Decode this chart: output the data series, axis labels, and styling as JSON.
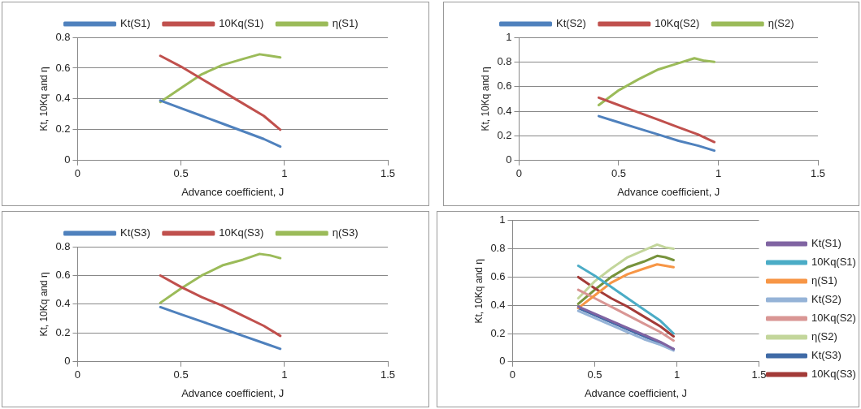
{
  "chart_data": [
    {
      "type": "line",
      "xlabel": "Advance coefficient, J",
      "ylabel": "Kt, 10Kq and η",
      "xlim": [
        0,
        1.5
      ],
      "xticks": [
        0,
        0.5,
        1,
        1.5
      ],
      "ylim": [
        0,
        0.8
      ],
      "yticks": [
        0,
        0.2,
        0.4,
        0.6,
        0.8
      ],
      "grid": "y",
      "legend": "top",
      "marker": "none",
      "series": [
        {
          "name": "Kt(S1)",
          "color": "#4f81bd",
          "x": [
            0.4,
            0.5,
            0.6,
            0.7,
            0.8,
            0.9,
            0.98
          ],
          "values": [
            0.39,
            0.34,
            0.29,
            0.24,
            0.19,
            0.14,
            0.09
          ]
        },
        {
          "name": "10Kq(S1)",
          "color": "#c0504d",
          "x": [
            0.4,
            0.5,
            0.6,
            0.7,
            0.8,
            0.9,
            0.98
          ],
          "values": [
            0.68,
            0.61,
            0.53,
            0.45,
            0.37,
            0.29,
            0.2
          ]
        },
        {
          "name": "η(S1)",
          "color": "#9bbb59",
          "x": [
            0.4,
            0.5,
            0.6,
            0.7,
            0.8,
            0.88,
            0.93,
            0.98
          ],
          "values": [
            0.38,
            0.47,
            0.56,
            0.62,
            0.66,
            0.69,
            0.68,
            0.67
          ]
        }
      ]
    },
    {
      "type": "line",
      "xlabel": "Advance coefficient, J",
      "ylabel": "Kt, 10Kq and η",
      "xlim": [
        0,
        1.5
      ],
      "xticks": [
        0,
        0.5,
        1,
        1.5
      ],
      "ylim": [
        0,
        1
      ],
      "yticks": [
        0,
        0.2,
        0.4,
        0.6,
        0.8,
        1
      ],
      "grid": "y",
      "legend": "top",
      "marker": "none",
      "series": [
        {
          "name": "Kt(S2)",
          "color": "#4f81bd",
          "x": [
            0.4,
            0.5,
            0.6,
            0.7,
            0.8,
            0.9,
            0.98
          ],
          "values": [
            0.36,
            0.31,
            0.26,
            0.21,
            0.16,
            0.12,
            0.08
          ]
        },
        {
          "name": "10Kq(S2)",
          "color": "#c0504d",
          "x": [
            0.4,
            0.5,
            0.6,
            0.7,
            0.8,
            0.9,
            0.98
          ],
          "values": [
            0.51,
            0.45,
            0.39,
            0.33,
            0.27,
            0.21,
            0.15
          ]
        },
        {
          "name": "η(S2)",
          "color": "#9bbb59",
          "x": [
            0.4,
            0.5,
            0.6,
            0.7,
            0.8,
            0.88,
            0.93,
            0.98
          ],
          "values": [
            0.45,
            0.57,
            0.66,
            0.74,
            0.79,
            0.83,
            0.81,
            0.8
          ]
        }
      ]
    },
    {
      "type": "line",
      "xlabel": "Advance coefficient, J",
      "ylabel": "Kt, 10Kq and η",
      "xlim": [
        0,
        1.5
      ],
      "xticks": [
        0,
        0.5,
        1,
        1.5
      ],
      "ylim": [
        0,
        0.8
      ],
      "yticks": [
        0,
        0.2,
        0.4,
        0.6,
        0.8
      ],
      "grid": "y",
      "legend": "top",
      "marker": "none",
      "series": [
        {
          "name": "Kt(S3)",
          "color": "#4f81bd",
          "x": [
            0.4,
            0.5,
            0.6,
            0.7,
            0.8,
            0.9,
            0.98
          ],
          "values": [
            0.38,
            0.33,
            0.28,
            0.23,
            0.18,
            0.13,
            0.09
          ]
        },
        {
          "name": "10Kq(S3)",
          "color": "#c0504d",
          "x": [
            0.4,
            0.5,
            0.6,
            0.7,
            0.8,
            0.9,
            0.98
          ],
          "values": [
            0.6,
            0.52,
            0.45,
            0.39,
            0.32,
            0.25,
            0.18
          ]
        },
        {
          "name": "η(S3)",
          "color": "#9bbb59",
          "x": [
            0.4,
            0.5,
            0.6,
            0.7,
            0.8,
            0.88,
            0.93,
            0.98
          ],
          "values": [
            0.41,
            0.51,
            0.6,
            0.67,
            0.71,
            0.75,
            0.74,
            0.72
          ]
        }
      ]
    },
    {
      "type": "line",
      "xlabel": "Advance coefficient, J",
      "ylabel": "Kt, 10Kq and η",
      "xlim": [
        0,
        1.5
      ],
      "xticks": [
        0,
        0.5,
        1,
        1.5
      ],
      "ylim": [
        0,
        1
      ],
      "yticks": [
        0,
        0.2,
        0.4,
        0.6,
        0.8,
        1
      ],
      "grid": "y",
      "legend": "right",
      "marker": "none",
      "series": [
        {
          "name": "Kt(S1)",
          "color": "#8064a2",
          "x": [
            0.4,
            0.5,
            0.6,
            0.7,
            0.8,
            0.9,
            0.98
          ],
          "values": [
            0.39,
            0.34,
            0.29,
            0.24,
            0.19,
            0.14,
            0.09
          ]
        },
        {
          "name": "10Kq(S1)",
          "color": "#4bacc6",
          "x": [
            0.4,
            0.5,
            0.6,
            0.7,
            0.8,
            0.9,
            0.98
          ],
          "values": [
            0.68,
            0.61,
            0.53,
            0.45,
            0.37,
            0.29,
            0.2
          ]
        },
        {
          "name": "η(S1)",
          "color": "#f79646",
          "x": [
            0.4,
            0.5,
            0.6,
            0.7,
            0.8,
            0.88,
            0.93,
            0.98
          ],
          "values": [
            0.38,
            0.47,
            0.56,
            0.62,
            0.66,
            0.69,
            0.68,
            0.67
          ]
        },
        {
          "name": "Kt(S2)",
          "color": "#95b3d7",
          "x": [
            0.4,
            0.5,
            0.6,
            0.7,
            0.8,
            0.9,
            0.98
          ],
          "values": [
            0.36,
            0.31,
            0.26,
            0.21,
            0.16,
            0.12,
            0.08
          ]
        },
        {
          "name": "10Kq(S2)",
          "color": "#d99694",
          "x": [
            0.4,
            0.5,
            0.6,
            0.7,
            0.8,
            0.9,
            0.98
          ],
          "values": [
            0.51,
            0.45,
            0.39,
            0.33,
            0.27,
            0.21,
            0.15
          ]
        },
        {
          "name": "η(S2)",
          "color": "#c3d69b",
          "x": [
            0.4,
            0.5,
            0.6,
            0.7,
            0.8,
            0.88,
            0.93,
            0.98
          ],
          "values": [
            0.45,
            0.57,
            0.66,
            0.74,
            0.79,
            0.83,
            0.81,
            0.8
          ]
        },
        {
          "name": "Kt(S3)",
          "color": "#3f6aa6",
          "x": [
            0.4,
            0.5,
            0.6,
            0.7,
            0.8,
            0.9,
            0.98
          ],
          "values": [
            0.38,
            0.33,
            0.28,
            0.23,
            0.18,
            0.13,
            0.09
          ]
        },
        {
          "name": "10Kq(S3)",
          "color": "#a33b38",
          "x": [
            0.4,
            0.5,
            0.6,
            0.7,
            0.8,
            0.9,
            0.98
          ],
          "values": [
            0.6,
            0.52,
            0.45,
            0.39,
            0.32,
            0.25,
            0.18
          ]
        },
        {
          "color": "#77933c",
          "x": [
            0.4,
            0.5,
            0.6,
            0.7,
            0.8,
            0.88,
            0.93,
            0.98
          ],
          "values": [
            0.41,
            0.51,
            0.6,
            0.67,
            0.71,
            0.75,
            0.74,
            0.72
          ]
        }
      ]
    }
  ]
}
